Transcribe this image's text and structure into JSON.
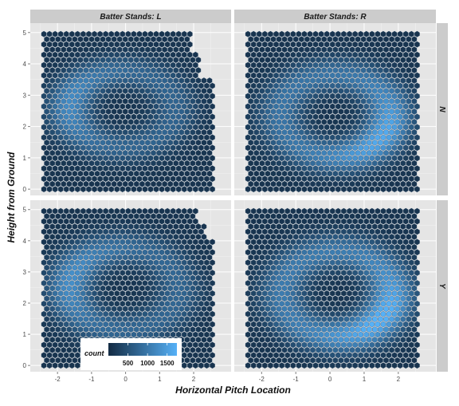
{
  "chart_data": {
    "type": "heatmap",
    "subtype": "hexbin",
    "xlabel": "Horizontal Pitch Location",
    "ylabel": "Height from Ground",
    "xlim": [
      -2.8,
      3.1
    ],
    "ylim": [
      -0.2,
      5.3
    ],
    "x_ticks": [
      -2,
      -1,
      0,
      1,
      2
    ],
    "y_ticks": [
      0,
      1,
      2,
      3,
      4,
      5
    ],
    "grid": true,
    "facets": {
      "columns": [
        "Batter Stands: L",
        "Batter Stands: R"
      ],
      "rows": [
        "N",
        "Y"
      ]
    },
    "fill": {
      "name": "count",
      "low_color": "#132B43",
      "high_color": "#56B1F7",
      "breaks": [
        500,
        1000,
        1500
      ],
      "break_labels": [
        "500",
        "1000",
        "1500"
      ],
      "range": [
        0,
        1750
      ]
    },
    "legend_position": "bottom-left inside",
    "hex_grid": {
      "x_start": -2.4,
      "x_end": 2.6,
      "y_start": 0,
      "y_end": 4.95
    },
    "density_panels": [
      {
        "facet": "L-N",
        "center": [
          -0.1,
          2.55
        ],
        "ring_radius_x": 1.55,
        "ring_radius_y": 1.2,
        "hot_angle_deg": 170,
        "peak": 1150
      },
      {
        "facet": "R-N",
        "center": [
          0.15,
          2.35
        ],
        "ring_radius_x": 1.6,
        "ring_radius_y": 1.3,
        "hot_angle_deg": -30,
        "peak": 1550
      },
      {
        "facet": "L-Y",
        "center": [
          -0.05,
          2.45
        ],
        "ring_radius_x": 1.6,
        "ring_radius_y": 1.3,
        "hot_angle_deg": 165,
        "peak": 1200
      },
      {
        "facet": "R-Y",
        "center": [
          0.2,
          2.3
        ],
        "ring_radius_x": 1.6,
        "ring_radius_y": 1.35,
        "hot_angle_deg": -35,
        "peak": 1700
      }
    ]
  }
}
